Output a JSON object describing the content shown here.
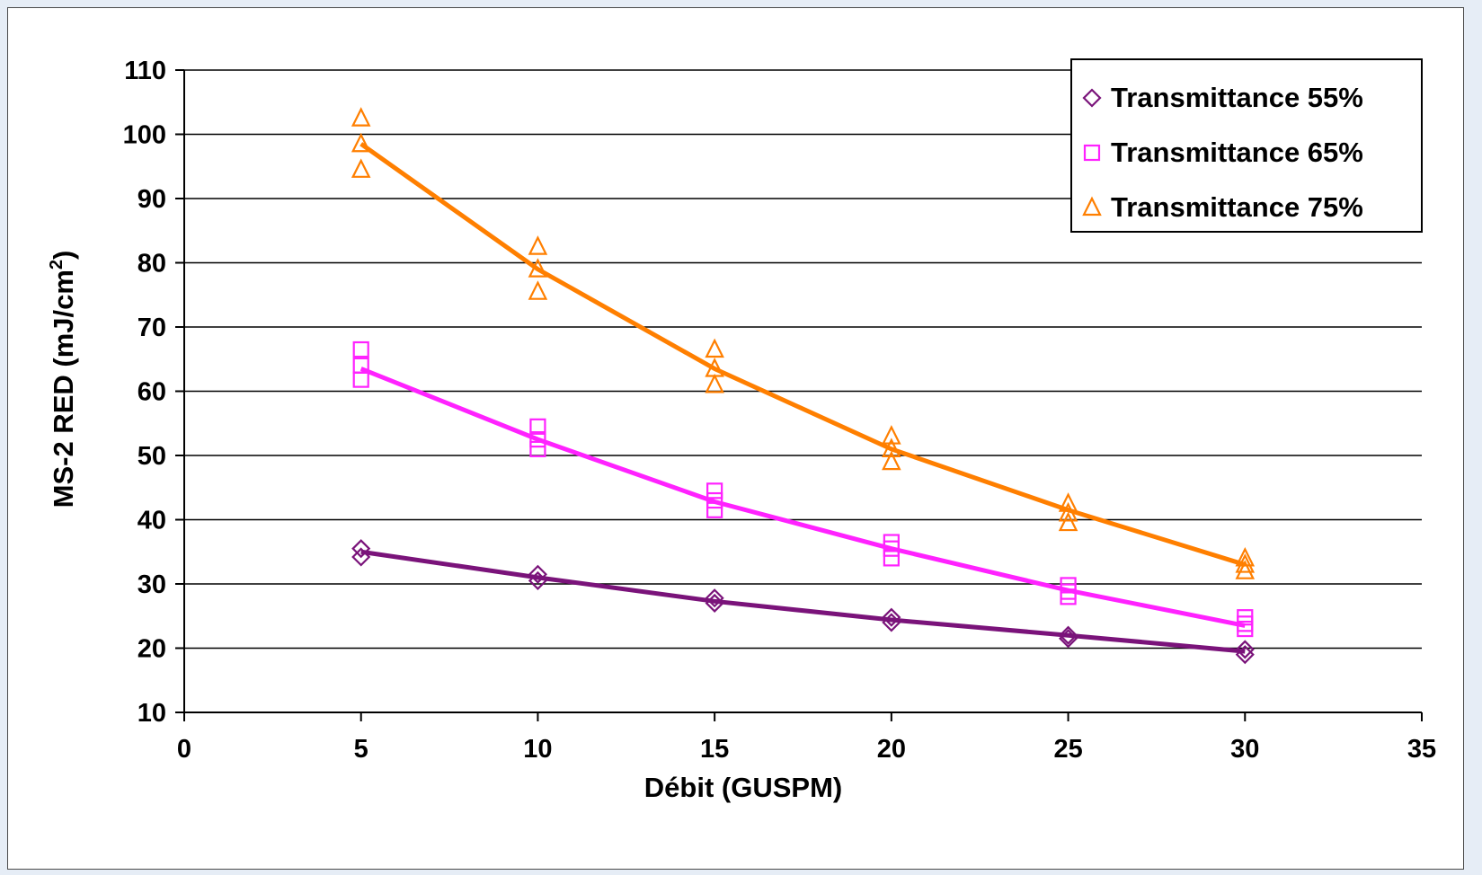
{
  "chart_data": {
    "type": "scatter",
    "xlabel": "Débit (GUSPM)",
    "ylabel": "MS-2 RED (mJ/cm²)",
    "ylabel_main": "MS-2 RED (mJ/cm",
    "ylabel_sup": "2",
    "ylabel_end": ")",
    "xlim": [
      0,
      35
    ],
    "ylim": [
      10,
      110
    ],
    "xticks": [
      0,
      5,
      10,
      15,
      20,
      25,
      30,
      35
    ],
    "yticks": [
      10,
      20,
      30,
      40,
      50,
      60,
      70,
      80,
      90,
      100,
      110
    ],
    "grid": "horizontal",
    "legend_position": "top-right",
    "series": [
      {
        "name": "Transmittance 55%",
        "marker": "diamond",
        "color": "#7a137a",
        "points": [
          [
            5,
            35.5
          ],
          [
            5,
            34.2
          ],
          [
            10,
            31.5
          ],
          [
            10,
            30.5
          ],
          [
            15,
            27.8
          ],
          [
            15,
            27.0
          ],
          [
            20,
            24.8
          ],
          [
            20,
            24.0
          ],
          [
            25,
            22.0
          ],
          [
            25,
            21.5
          ],
          [
            30,
            19.8
          ],
          [
            30,
            19.0
          ]
        ],
        "trend": [
          [
            5,
            35.0
          ],
          [
            10,
            31.0
          ],
          [
            15,
            27.3
          ],
          [
            20,
            24.4
          ],
          [
            25,
            22.0
          ],
          [
            30,
            19.5
          ]
        ]
      },
      {
        "name": "Transmittance 65%",
        "marker": "square",
        "color": "#ff22ff",
        "points": [
          [
            5,
            66.5
          ],
          [
            5,
            64.0
          ],
          [
            5,
            61.8
          ],
          [
            10,
            54.5
          ],
          [
            10,
            52.5
          ],
          [
            10,
            51.0
          ],
          [
            15,
            44.5
          ],
          [
            15,
            43.0
          ],
          [
            15,
            41.5
          ],
          [
            20,
            36.5
          ],
          [
            20,
            35.5
          ],
          [
            20,
            34.0
          ],
          [
            25,
            29.8
          ],
          [
            25,
            28.8
          ],
          [
            25,
            28.0
          ],
          [
            30,
            24.8
          ],
          [
            30,
            23.8
          ],
          [
            30,
            23.0
          ]
        ],
        "trend": [
          [
            5,
            63.5
          ],
          [
            10,
            52.5
          ],
          [
            15,
            42.8
          ],
          [
            20,
            35.5
          ],
          [
            25,
            29.0
          ],
          [
            30,
            23.5
          ]
        ]
      },
      {
        "name": "Transmittance 75%",
        "marker": "triangle",
        "color": "#ff7f00",
        "points": [
          [
            5,
            102.5
          ],
          [
            5,
            98.5
          ],
          [
            5,
            94.5
          ],
          [
            10,
            82.5
          ],
          [
            10,
            79.0
          ],
          [
            10,
            75.5
          ],
          [
            15,
            66.5
          ],
          [
            15,
            63.5
          ],
          [
            15,
            61.0
          ],
          [
            20,
            53.0
          ],
          [
            20,
            51.0
          ],
          [
            20,
            49.0
          ],
          [
            25,
            42.5
          ],
          [
            25,
            41.0
          ],
          [
            25,
            39.5
          ],
          [
            30,
            34.0
          ],
          [
            30,
            33.0
          ],
          [
            30,
            32.0
          ]
        ],
        "trend": [
          [
            5,
            98.5
          ],
          [
            10,
            79.0
          ],
          [
            15,
            63.5
          ],
          [
            20,
            51.0
          ],
          [
            25,
            41.5
          ],
          [
            30,
            33.0
          ]
        ]
      }
    ]
  }
}
